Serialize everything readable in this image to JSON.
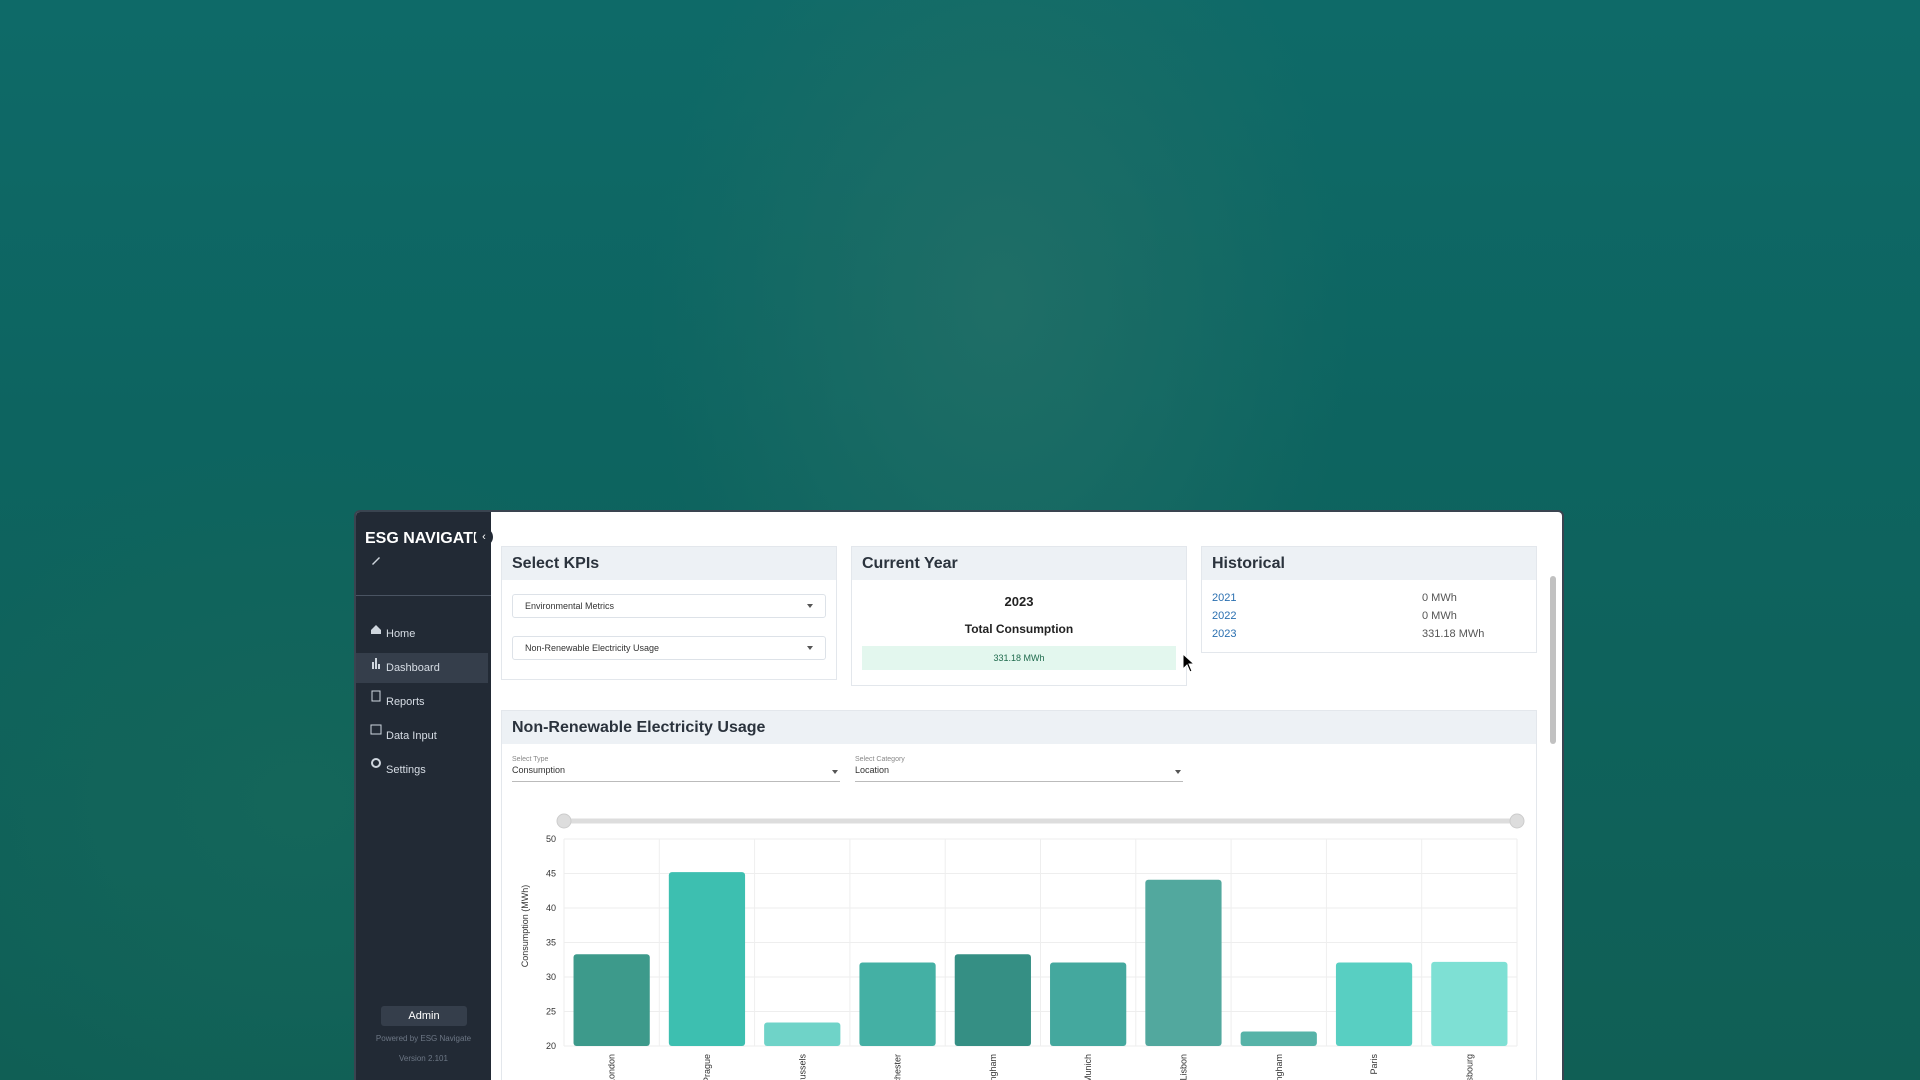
{
  "sidebar": {
    "brand": "ESG NAVIGATE",
    "nav": [
      "Home",
      "Dashboard",
      "Reports",
      "Data Input",
      "Settings"
    ],
    "user": "Admin",
    "powered_by": "Powered by ESG Navigate",
    "version": "Version 2.101"
  },
  "kpi_panel": {
    "title": "Select KPIs",
    "selects": [
      "Environmental Metrics",
      "Non-Renewable Electricity Usage"
    ]
  },
  "current_year": {
    "title": "Current Year",
    "year": "2023",
    "label": "Total Consumption",
    "value": "331.18 MWh"
  },
  "historical": {
    "title": "Historical",
    "rows": [
      [
        "2021",
        "0 MWh"
      ],
      [
        "2022",
        "0 MWh"
      ],
      [
        "2023",
        "331.18 MWh"
      ]
    ]
  },
  "chart_panel": {
    "title": "Non-Renewable Electricity Usage",
    "filters": [
      {
        "label": "Select Type",
        "value": "Consumption"
      },
      {
        "label": "Select Category",
        "value": "Location"
      }
    ]
  },
  "chart_data": {
    "type": "bar",
    "y_label": "Consumption (MWh)",
    "categories": [
      "London",
      "Prague",
      "Brussels",
      "nchester",
      "mingham",
      "Munich",
      "Lisbon",
      "mingham",
      "Paris",
      "rasbourg"
    ],
    "values": [
      33.3,
      45.2,
      23.4,
      32.1,
      33.3,
      32.1,
      44.1,
      22.1,
      32.1,
      32.2
    ],
    "colors": [
      "#3d9a8b",
      "#3dbfb0",
      "#6fd3c8",
      "#44b0a4",
      "#358f84",
      "#44a89e",
      "#52a89e",
      "#56b3a8",
      "#58cfc2",
      "#7ee0d4"
    ],
    "ylim": [
      20,
      50
    ],
    "yticks": [
      20,
      25,
      30,
      35,
      40,
      45,
      50
    ],
    "grid": true
  }
}
